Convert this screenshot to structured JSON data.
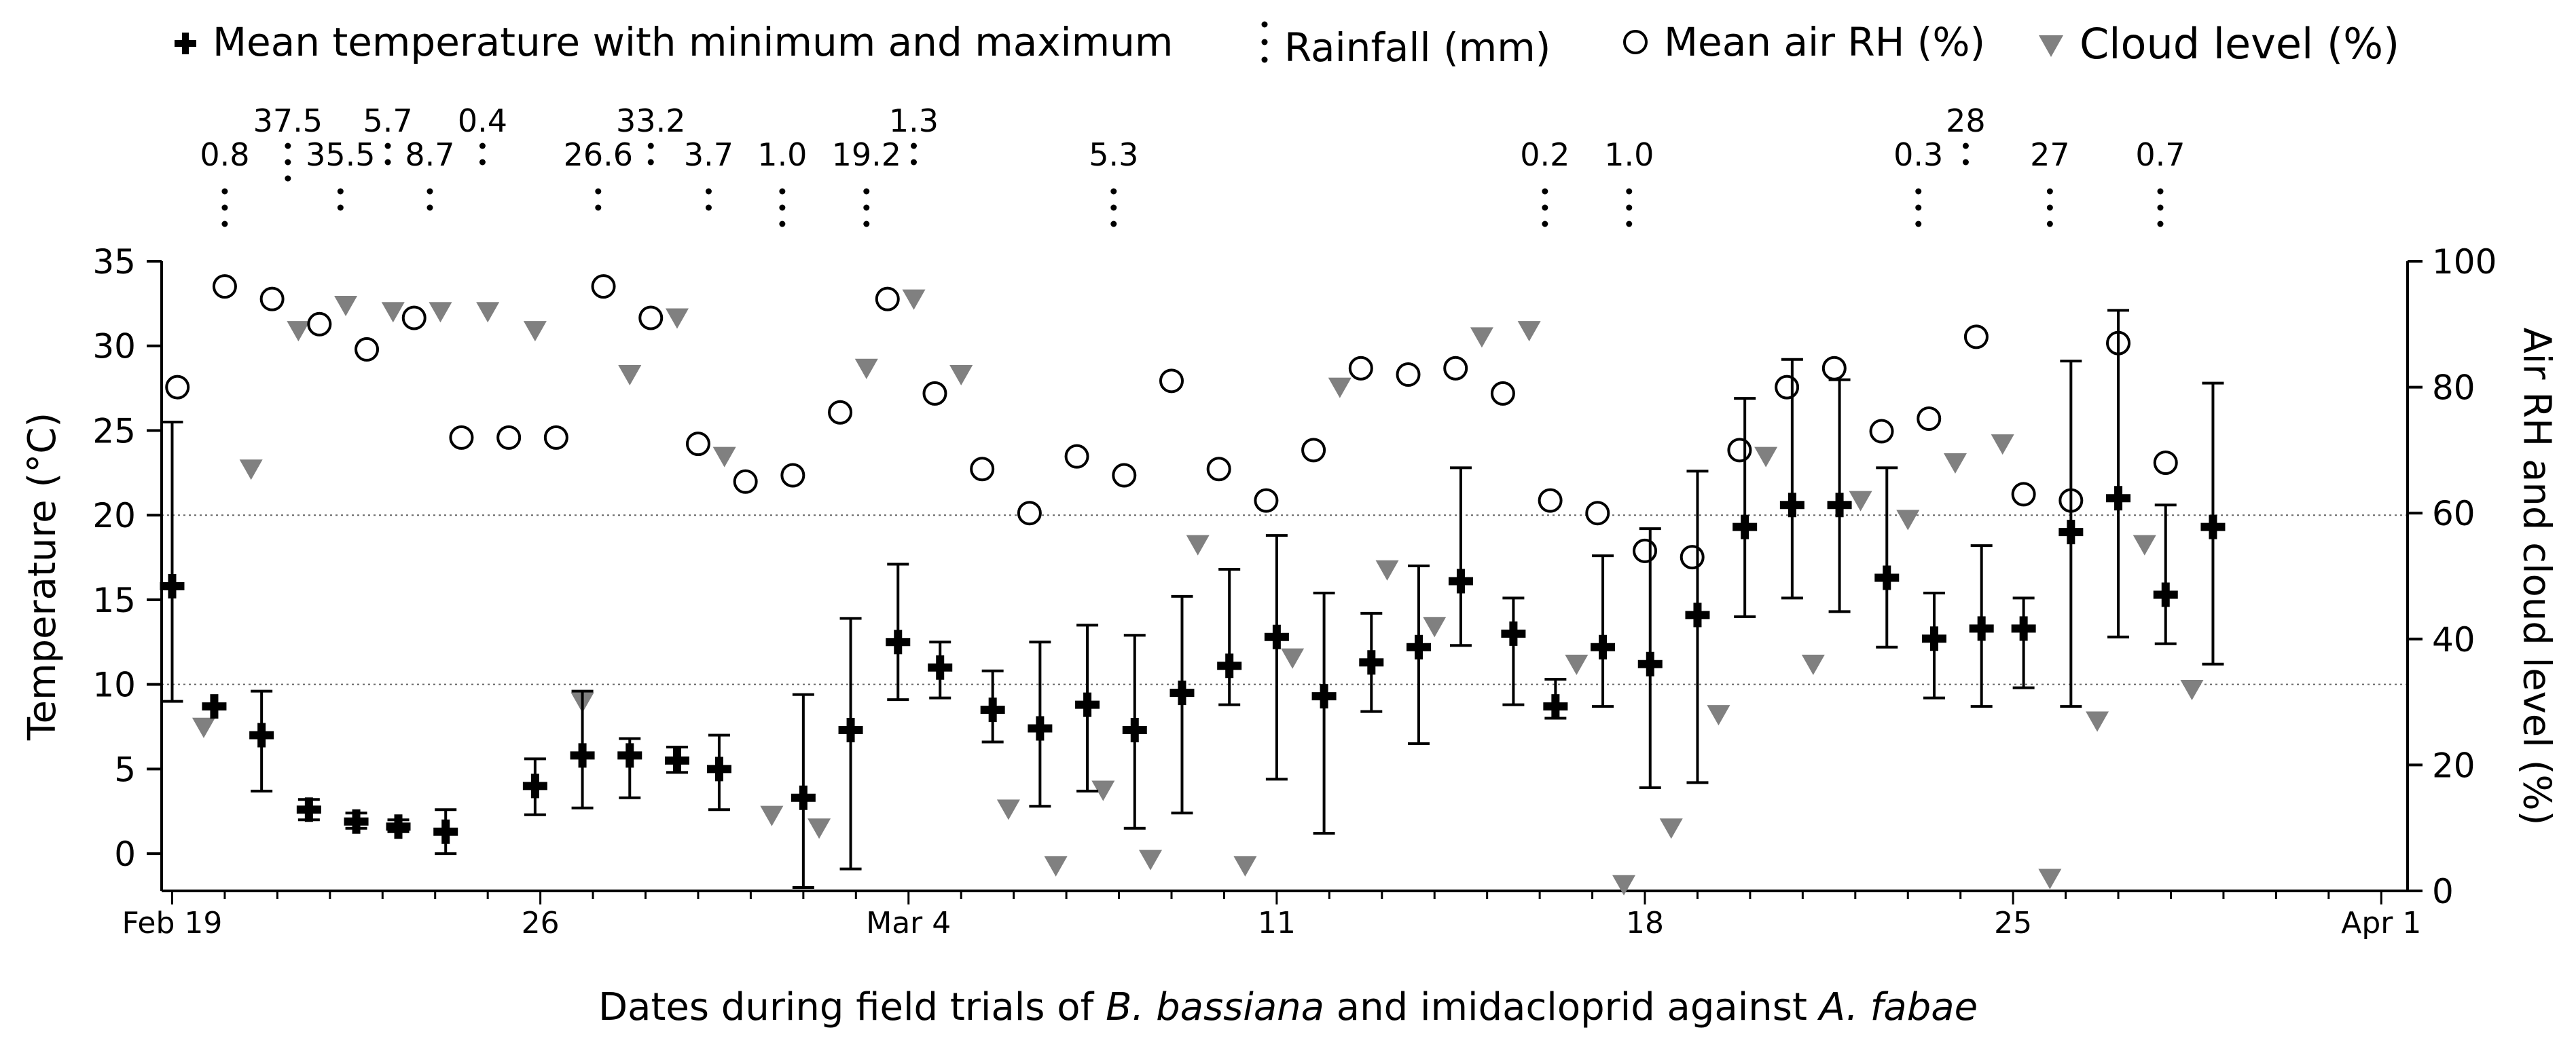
{
  "chart_data": {
    "type": "scatter",
    "title": "",
    "xlabel_parts": [
      {
        "t": "Dates during field trials of ",
        "i": false
      },
      {
        "t": "B. bassiana",
        "i": true
      },
      {
        "t": " and imidacloprid against ",
        "i": false
      },
      {
        "t": "A. fabae",
        "i": true
      }
    ],
    "ylabel_left": "Temperature (°C)",
    "ylabel_right": "Air RH and cloud level (%)",
    "ylim_left": [
      -2.2,
      35
    ],
    "ylim_right": [
      0,
      100
    ],
    "yticks_left": [
      0,
      5,
      10,
      15,
      20,
      25,
      30,
      35
    ],
    "yticks_right": [
      0,
      20,
      40,
      60,
      80,
      100
    ],
    "xlim": [
      -0.2,
      42.5
    ],
    "xticks": [
      {
        "day": 0,
        "label": "Feb 19"
      },
      {
        "day": 7,
        "label": "26"
      },
      {
        "day": 14,
        "label": "Mar 4"
      },
      {
        "day": 21,
        "label": "11"
      },
      {
        "day": 28,
        "label": "18"
      },
      {
        "day": 35,
        "label": "25"
      },
      {
        "day": 42,
        "label": "Apr 1"
      }
    ],
    "reference_lines_left": [
      10,
      20
    ],
    "legend": [
      {
        "symbol": "plus",
        "label": "Mean temperature with minimum and maximum"
      },
      {
        "symbol": "dots",
        "label": "Rainfall (mm)"
      },
      {
        "symbol": "circle",
        "label": "Mean air RH (%)"
      },
      {
        "symbol": "triangle",
        "label": "Cloud level (%)"
      }
    ],
    "temperature": [
      {
        "day": 0,
        "mean": 15.8,
        "min": 9.0,
        "max": 25.5
      },
      {
        "day": 0.8,
        "mean": 8.7,
        "min": 8.7,
        "max": 8.7
      },
      {
        "day": 1.7,
        "mean": 7.0,
        "min": 3.7,
        "max": 9.6
      },
      {
        "day": 2.6,
        "mean": 2.6,
        "min": 2.0,
        "max": 3.2
      },
      {
        "day": 3.5,
        "mean": 1.9,
        "min": 1.5,
        "max": 2.4
      },
      {
        "day": 4.3,
        "mean": 1.6,
        "min": 1.3,
        "max": 2.0
      },
      {
        "day": 5.2,
        "mean": 1.3,
        "min": 0.0,
        "max": 2.6
      },
      {
        "day": 6.9,
        "mean": 4.0,
        "min": 2.3,
        "max": 5.6
      },
      {
        "day": 7.8,
        "mean": 5.8,
        "min": 2.7,
        "max": 9.6
      },
      {
        "day": 8.7,
        "mean": 5.8,
        "min": 3.3,
        "max": 6.8
      },
      {
        "day": 9.6,
        "mean": 5.5,
        "min": 4.8,
        "max": 6.3
      },
      {
        "day": 10.4,
        "mean": 5.0,
        "min": 2.6,
        "max": 7.0
      },
      {
        "day": 12.0,
        "mean": 3.3,
        "min": -2.0,
        "max": 9.4
      },
      {
        "day": 12.9,
        "mean": 7.3,
        "min": -0.9,
        "max": 13.9
      },
      {
        "day": 13.8,
        "mean": 12.5,
        "min": 9.1,
        "max": 17.1
      },
      {
        "day": 14.6,
        "mean": 11.0,
        "min": 9.2,
        "max": 12.5
      },
      {
        "day": 15.6,
        "mean": 8.5,
        "min": 6.6,
        "max": 10.8
      },
      {
        "day": 16.5,
        "mean": 7.4,
        "min": 2.8,
        "max": 12.5
      },
      {
        "day": 17.4,
        "mean": 8.8,
        "min": 3.7,
        "max": 13.5
      },
      {
        "day": 18.3,
        "mean": 7.3,
        "min": 1.5,
        "max": 12.9
      },
      {
        "day": 19.2,
        "mean": 9.5,
        "min": 2.4,
        "max": 15.2
      },
      {
        "day": 20.1,
        "mean": 11.1,
        "min": 8.8,
        "max": 16.8
      },
      {
        "day": 21.0,
        "mean": 12.8,
        "min": 4.4,
        "max": 18.8
      },
      {
        "day": 21.9,
        "mean": 9.3,
        "min": 1.2,
        "max": 15.4
      },
      {
        "day": 22.8,
        "mean": 11.3,
        "min": 8.4,
        "max": 14.2
      },
      {
        "day": 23.7,
        "mean": 12.2,
        "min": 6.5,
        "max": 17.0
      },
      {
        "day": 24.5,
        "mean": 16.1,
        "min": 12.3,
        "max": 22.8
      },
      {
        "day": 25.5,
        "mean": 13.0,
        "min": 8.8,
        "max": 15.1
      },
      {
        "day": 26.3,
        "mean": 8.7,
        "min": 8.0,
        "max": 10.3
      },
      {
        "day": 27.2,
        "mean": 12.2,
        "min": 8.7,
        "max": 17.6
      },
      {
        "day": 28.1,
        "mean": 11.2,
        "min": 3.9,
        "max": 19.2
      },
      {
        "day": 29.0,
        "mean": 14.1,
        "min": 4.2,
        "max": 22.6
      },
      {
        "day": 29.9,
        "mean": 19.3,
        "min": 14.0,
        "max": 26.9
      },
      {
        "day": 30.8,
        "mean": 20.6,
        "min": 15.1,
        "max": 29.2
      },
      {
        "day": 31.7,
        "mean": 20.6,
        "min": 14.3,
        "max": 28.0
      },
      {
        "day": 32.6,
        "mean": 16.3,
        "min": 12.2,
        "max": 22.8
      },
      {
        "day": 33.5,
        "mean": 12.7,
        "min": 9.2,
        "max": 15.4
      },
      {
        "day": 34.4,
        "mean": 13.3,
        "min": 8.7,
        "max": 18.2
      },
      {
        "day": 35.2,
        "mean": 13.3,
        "min": 9.8,
        "max": 15.1
      },
      {
        "day": 36.1,
        "mean": 19.0,
        "min": 8.7,
        "max": 29.1
      },
      {
        "day": 37.0,
        "mean": 21.0,
        "min": 12.8,
        "max": 32.1
      },
      {
        "day": 37.9,
        "mean": 15.3,
        "min": 12.4,
        "max": 20.6
      },
      {
        "day": 38.8,
        "mean": 19.3,
        "min": 11.2,
        "max": 27.8
      }
    ],
    "rh": [
      {
        "day": 0.1,
        "v": 80
      },
      {
        "day": 1.0,
        "v": 96
      },
      {
        "day": 1.9,
        "v": 94
      },
      {
        "day": 2.8,
        "v": 90
      },
      {
        "day": 3.7,
        "v": 86
      },
      {
        "day": 4.6,
        "v": 91
      },
      {
        "day": 5.5,
        "v": 72
      },
      {
        "day": 6.4,
        "v": 72
      },
      {
        "day": 7.3,
        "v": 72
      },
      {
        "day": 8.2,
        "v": 96
      },
      {
        "day": 9.1,
        "v": 91
      },
      {
        "day": 10.0,
        "v": 71
      },
      {
        "day": 10.9,
        "v": 65
      },
      {
        "day": 11.8,
        "v": 66
      },
      {
        "day": 12.7,
        "v": 76
      },
      {
        "day": 13.6,
        "v": 94
      },
      {
        "day": 14.5,
        "v": 79
      },
      {
        "day": 15.4,
        "v": 67
      },
      {
        "day": 16.3,
        "v": 60
      },
      {
        "day": 17.2,
        "v": 69
      },
      {
        "day": 18.1,
        "v": 66
      },
      {
        "day": 19.0,
        "v": 81
      },
      {
        "day": 19.9,
        "v": 67
      },
      {
        "day": 20.8,
        "v": 62
      },
      {
        "day": 21.7,
        "v": 70
      },
      {
        "day": 22.6,
        "v": 83
      },
      {
        "day": 23.5,
        "v": 82
      },
      {
        "day": 24.4,
        "v": 83
      },
      {
        "day": 25.3,
        "v": 79
      },
      {
        "day": 26.2,
        "v": 62
      },
      {
        "day": 27.1,
        "v": 60
      },
      {
        "day": 28.0,
        "v": 54
      },
      {
        "day": 28.9,
        "v": 53
      },
      {
        "day": 29.8,
        "v": 70
      },
      {
        "day": 30.7,
        "v": 80
      },
      {
        "day": 31.6,
        "v": 83
      },
      {
        "day": 32.5,
        "v": 73
      },
      {
        "day": 33.4,
        "v": 75
      },
      {
        "day": 34.3,
        "v": 88
      },
      {
        "day": 35.2,
        "v": 63
      },
      {
        "day": 36.1,
        "v": 62
      },
      {
        "day": 37.0,
        "v": 87
      },
      {
        "day": 37.9,
        "v": 68
      }
    ],
    "cloud": [
      {
        "day": 0.6,
        "v": 26
      },
      {
        "day": 1.5,
        "v": 67
      },
      {
        "day": 2.4,
        "v": 89
      },
      {
        "day": 3.3,
        "v": 93
      },
      {
        "day": 4.2,
        "v": 92
      },
      {
        "day": 5.1,
        "v": 92
      },
      {
        "day": 6.0,
        "v": 92
      },
      {
        "day": 6.9,
        "v": 89
      },
      {
        "day": 7.8,
        "v": 30
      },
      {
        "day": 8.7,
        "v": 82
      },
      {
        "day": 9.6,
        "v": 91
      },
      {
        "day": 10.5,
        "v": 69
      },
      {
        "day": 11.4,
        "v": 12
      },
      {
        "day": 12.3,
        "v": 10
      },
      {
        "day": 13.2,
        "v": 83
      },
      {
        "day": 14.1,
        "v": 94
      },
      {
        "day": 15.0,
        "v": 82
      },
      {
        "day": 15.9,
        "v": 13
      },
      {
        "day": 16.8,
        "v": 4
      },
      {
        "day": 17.7,
        "v": 16
      },
      {
        "day": 18.6,
        "v": 5
      },
      {
        "day": 19.5,
        "v": 55
      },
      {
        "day": 20.4,
        "v": 4
      },
      {
        "day": 21.3,
        "v": 37
      },
      {
        "day": 22.2,
        "v": 80
      },
      {
        "day": 23.1,
        "v": 51
      },
      {
        "day": 24.0,
        "v": 42
      },
      {
        "day": 24.9,
        "v": 88
      },
      {
        "day": 25.8,
        "v": 89
      },
      {
        "day": 26.7,
        "v": 36
      },
      {
        "day": 27.6,
        "v": 1
      },
      {
        "day": 28.5,
        "v": 10
      },
      {
        "day": 29.4,
        "v": 28
      },
      {
        "day": 30.3,
        "v": 69
      },
      {
        "day": 31.2,
        "v": 36
      },
      {
        "day": 32.1,
        "v": 62
      },
      {
        "day": 33.0,
        "v": 59
      },
      {
        "day": 33.9,
        "v": 68
      },
      {
        "day": 34.8,
        "v": 71
      },
      {
        "day": 35.7,
        "v": 2
      },
      {
        "day": 36.6,
        "v": 27
      },
      {
        "day": 37.5,
        "v": 55
      },
      {
        "day": 38.4,
        "v": 32
      }
    ],
    "rainfall": [
      {
        "day": 1.0,
        "label": "0.8",
        "row": 2,
        "dots": 3
      },
      {
        "day": 2.2,
        "label": "37.5",
        "row": 1,
        "dots": 3
      },
      {
        "day": 3.2,
        "label": "35.5",
        "row": 2,
        "dots": 2
      },
      {
        "day": 4.1,
        "label": "5.7",
        "row": 1,
        "dots": 2
      },
      {
        "day": 4.9,
        "label": "8.7",
        "row": 2,
        "dots": 2
      },
      {
        "day": 5.9,
        "label": "0.4",
        "row": 1,
        "dots": 2
      },
      {
        "day": 8.1,
        "label": "26.6",
        "row": 2,
        "dots": 2
      },
      {
        "day": 9.1,
        "label": "33.2",
        "row": 1,
        "dots": 2
      },
      {
        "day": 10.2,
        "label": "3.7",
        "row": 2,
        "dots": 2
      },
      {
        "day": 11.6,
        "label": "1.0",
        "row": 2,
        "dots": 3
      },
      {
        "day": 13.2,
        "label": "19.2",
        "row": 2,
        "dots": 3
      },
      {
        "day": 14.1,
        "label": "1.3",
        "row": 1,
        "dots": 2
      },
      {
        "day": 17.9,
        "label": "5.3",
        "row": 2,
        "dots": 3
      },
      {
        "day": 26.1,
        "label": "0.2",
        "row": 2,
        "dots": 3
      },
      {
        "day": 27.7,
        "label": "1.0",
        "row": 2,
        "dots": 3
      },
      {
        "day": 33.2,
        "label": "0.3",
        "row": 2,
        "dots": 3
      },
      {
        "day": 34.1,
        "label": "28",
        "row": 1,
        "dots": 2
      },
      {
        "day": 35.7,
        "label": "27",
        "row": 2,
        "dots": 3
      },
      {
        "day": 37.8,
        "label": "0.7",
        "row": 2,
        "dots": 3
      }
    ]
  }
}
